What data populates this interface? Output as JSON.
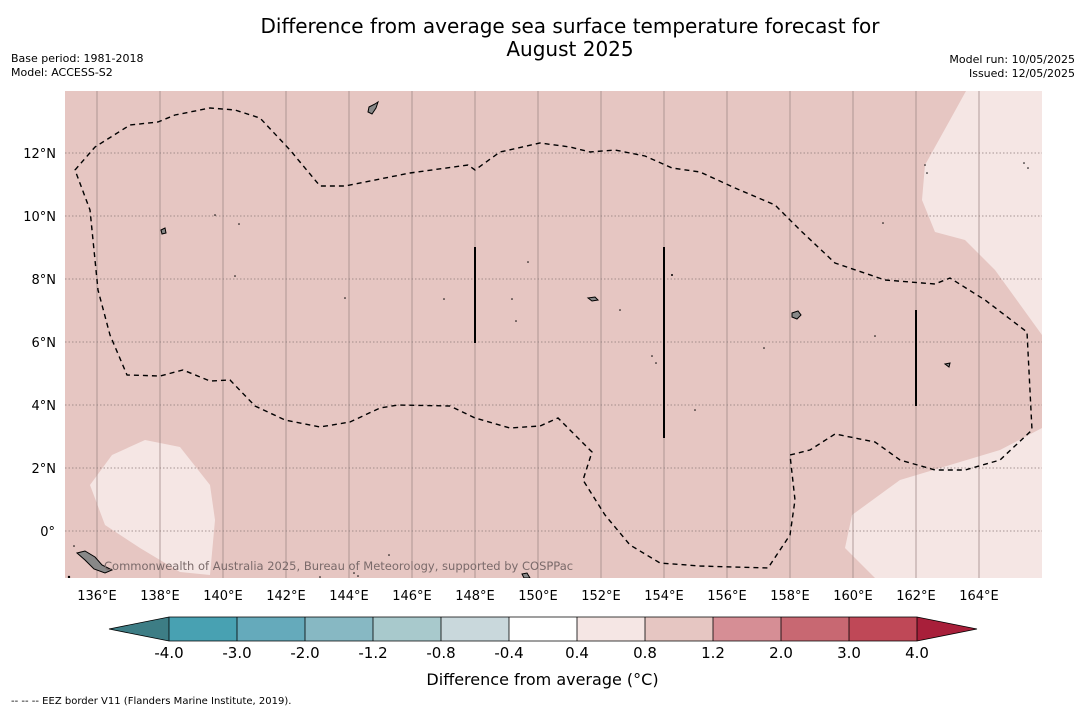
{
  "title": "Difference from average sea surface temperature forecast for\nAugust 2025",
  "title_line1": "Difference from average sea surface temperature forecast for",
  "title_line2": "August 2025",
  "meta_left": {
    "base_period": "Base period: 1981-2018",
    "model": "Model: ACCESS-S2"
  },
  "meta_right": {
    "model_run": "Model run: 10/05/2025",
    "issued": "Issued: 12/05/2025"
  },
  "map": {
    "x_ticks": [
      "136°E",
      "138°E",
      "140°E",
      "142°E",
      "144°E",
      "146°E",
      "148°E",
      "150°E",
      "152°E",
      "154°E",
      "156°E",
      "158°E",
      "160°E",
      "162°E",
      "164°E"
    ],
    "y_ticks": [
      "12°N",
      "10°N",
      "8°N",
      "6°N",
      "4°N",
      "2°N",
      "0°"
    ],
    "watermark": "Commonwealth of Australia 2025, Bureau of Meteorology, supported by COSPPac",
    "fill_colors": {
      "band_0_8_to_1_2": "#e6c6c2",
      "band_0_4_to_0_8": "#f5e6e4"
    }
  },
  "colorbar": {
    "label": "Difference from average (°C)",
    "ticks": [
      "-4.0",
      "-3.0",
      "-2.0",
      "-1.2",
      "-0.8",
      "-0.4",
      "0.4",
      "0.8",
      "1.2",
      "2.0",
      "3.0",
      "4.0"
    ],
    "colors": [
      "#3d7d85",
      "#48a1b2",
      "#65aabb",
      "#87b8c3",
      "#a8c9cc",
      "#c9d8dc",
      "#ffffff",
      "#f5e6e4",
      "#e6c6c2",
      "#d68e95",
      "#c86872",
      "#bf4857",
      "#a81f3a"
    ]
  },
  "footnote": "-- -- -- EEZ border V11 (Flanders Marine Institute, 2019)."
}
